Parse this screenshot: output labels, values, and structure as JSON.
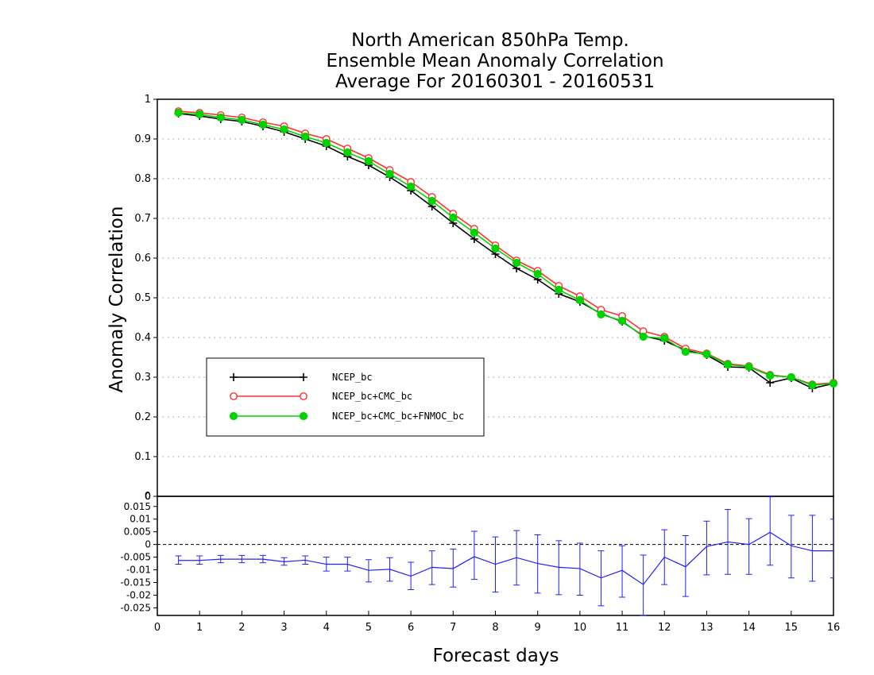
{
  "chart_data": [
    {
      "type": "line",
      "title": [
        "North American 850hPa Temp.",
        "Ensemble Mean Anomaly Correlation",
        "Average For 20160301 - 20160531"
      ],
      "ylabel": "Anomaly Correlation",
      "ylim": [
        0,
        1
      ],
      "yticks": [
        "0",
        "0.1",
        "0.2",
        "0.3",
        "0.4",
        "0.5",
        "0.6",
        "0.7",
        "0.8",
        "0.9",
        "1"
      ],
      "xlim": [
        0,
        16
      ],
      "x": [
        0.5,
        1,
        1.5,
        2,
        2.5,
        3,
        3.5,
        4,
        4.5,
        5,
        5.5,
        6,
        6.5,
        7,
        7.5,
        8,
        8.5,
        9,
        9.5,
        10,
        10.5,
        11,
        11.5,
        12,
        12.5,
        13,
        13.5,
        14,
        14.5,
        15,
        15.5,
        16
      ],
      "grid": true,
      "legend_position": "lower-left",
      "series": [
        {
          "name": "NCEP_bc",
          "color": "#000000",
          "marker": "plus",
          "values": [
            0.964,
            0.958,
            0.95,
            0.944,
            0.932,
            0.918,
            0.9,
            0.882,
            0.856,
            0.834,
            0.804,
            0.77,
            0.73,
            0.688,
            0.648,
            0.61,
            0.574,
            0.546,
            0.51,
            0.49,
            0.46,
            0.44,
            0.404,
            0.392,
            0.368,
            0.356,
            0.326,
            0.324,
            0.286,
            0.298,
            0.272,
            0.284
          ]
        },
        {
          "name": "NCEP_bc+CMC_bc",
          "color": "#ff3030",
          "marker": "open-circle",
          "values": [
            0.97,
            0.966,
            0.96,
            0.954,
            0.942,
            0.932,
            0.914,
            0.9,
            0.876,
            0.852,
            0.822,
            0.792,
            0.754,
            0.712,
            0.674,
            0.632,
            0.594,
            0.568,
            0.53,
            0.504,
            0.47,
            0.454,
            0.416,
            0.402,
            0.372,
            0.36,
            0.334,
            0.328,
            0.306,
            0.3,
            0.282,
            0.286
          ]
        },
        {
          "name": "NCEP_bc+CMC_bc+FNMOC_bc",
          "color": "#00d400",
          "marker": "filled-circle",
          "values": [
            0.966,
            0.962,
            0.954,
            0.948,
            0.936,
            0.924,
            0.906,
            0.89,
            0.866,
            0.844,
            0.812,
            0.78,
            0.744,
            0.702,
            0.664,
            0.624,
            0.588,
            0.56,
            0.52,
            0.494,
            0.458,
            0.442,
            0.402,
            0.398,
            0.364,
            0.358,
            0.332,
            0.326,
            0.304,
            0.3,
            0.28,
            0.284
          ]
        }
      ]
    },
    {
      "type": "line",
      "xlabel": "Forecast days",
      "xlim": [
        0,
        16
      ],
      "xticks": [
        "0",
        "1",
        "2",
        "3",
        "4",
        "5",
        "6",
        "7",
        "8",
        "9",
        "10",
        "11",
        "12",
        "13",
        "14",
        "15",
        "16"
      ],
      "ylim": [
        -0.028,
        0.019
      ],
      "yticks": [
        "0.015",
        "0.01",
        "0.005",
        "0",
        "-0.005",
        "-0.01",
        "-0.015",
        "-0.02",
        "-0.025"
      ],
      "top_tick_label": "0",
      "x": [
        0.5,
        1,
        1.5,
        2,
        2.5,
        3,
        3.5,
        4,
        4.5,
        5,
        5.5,
        6,
        6.5,
        7,
        7.5,
        8,
        8.5,
        9,
        9.5,
        10,
        10.5,
        11,
        11.5,
        12,
        12.5,
        13,
        13.5,
        14,
        14.5,
        15,
        15.5,
        16
      ],
      "series": [
        {
          "name": "",
          "color": "#2020ff",
          "marker": "error-bar",
          "values": [
            -0.0063,
            -0.0063,
            -0.0058,
            -0.0058,
            -0.0058,
            -0.0068,
            -0.0062,
            -0.0078,
            -0.0078,
            -0.0102,
            -0.0098,
            -0.0125,
            -0.009,
            -0.0095,
            -0.0048,
            -0.0078,
            -0.0052,
            -0.0075,
            -0.009,
            -0.0095,
            -0.0132,
            -0.0102,
            -0.0158,
            -0.005,
            -0.0088,
            -0.0008,
            0.001,
            0.0,
            0.0048,
            -0.0005,
            -0.0025,
            -0.0025
          ],
          "err_low": [
            -0.0078,
            -0.0078,
            -0.0072,
            -0.0072,
            -0.0072,
            -0.0082,
            -0.0078,
            -0.0105,
            -0.0105,
            -0.0148,
            -0.0145,
            -0.0178,
            -0.0158,
            -0.0168,
            -0.0138,
            -0.0188,
            -0.016,
            -0.0192,
            -0.0198,
            -0.02,
            -0.0242,
            -0.0208,
            -0.028,
            -0.0158,
            -0.0205,
            -0.012,
            -0.0118,
            -0.0118,
            -0.0082,
            -0.0132,
            -0.0145,
            -0.0132
          ],
          "err_high": [
            -0.0045,
            -0.0045,
            -0.0043,
            -0.0043,
            -0.0043,
            -0.0052,
            -0.0045,
            -0.005,
            -0.005,
            -0.006,
            -0.0052,
            -0.007,
            -0.0025,
            -0.0018,
            0.0052,
            0.003,
            0.0055,
            0.0038,
            0.0015,
            0.0005,
            -0.0025,
            -0.0005,
            -0.0042,
            0.0058,
            0.0035,
            0.0092,
            0.0138,
            0.0102,
            0.0188,
            0.0115,
            0.0115,
            0.01
          ]
        }
      ]
    }
  ]
}
